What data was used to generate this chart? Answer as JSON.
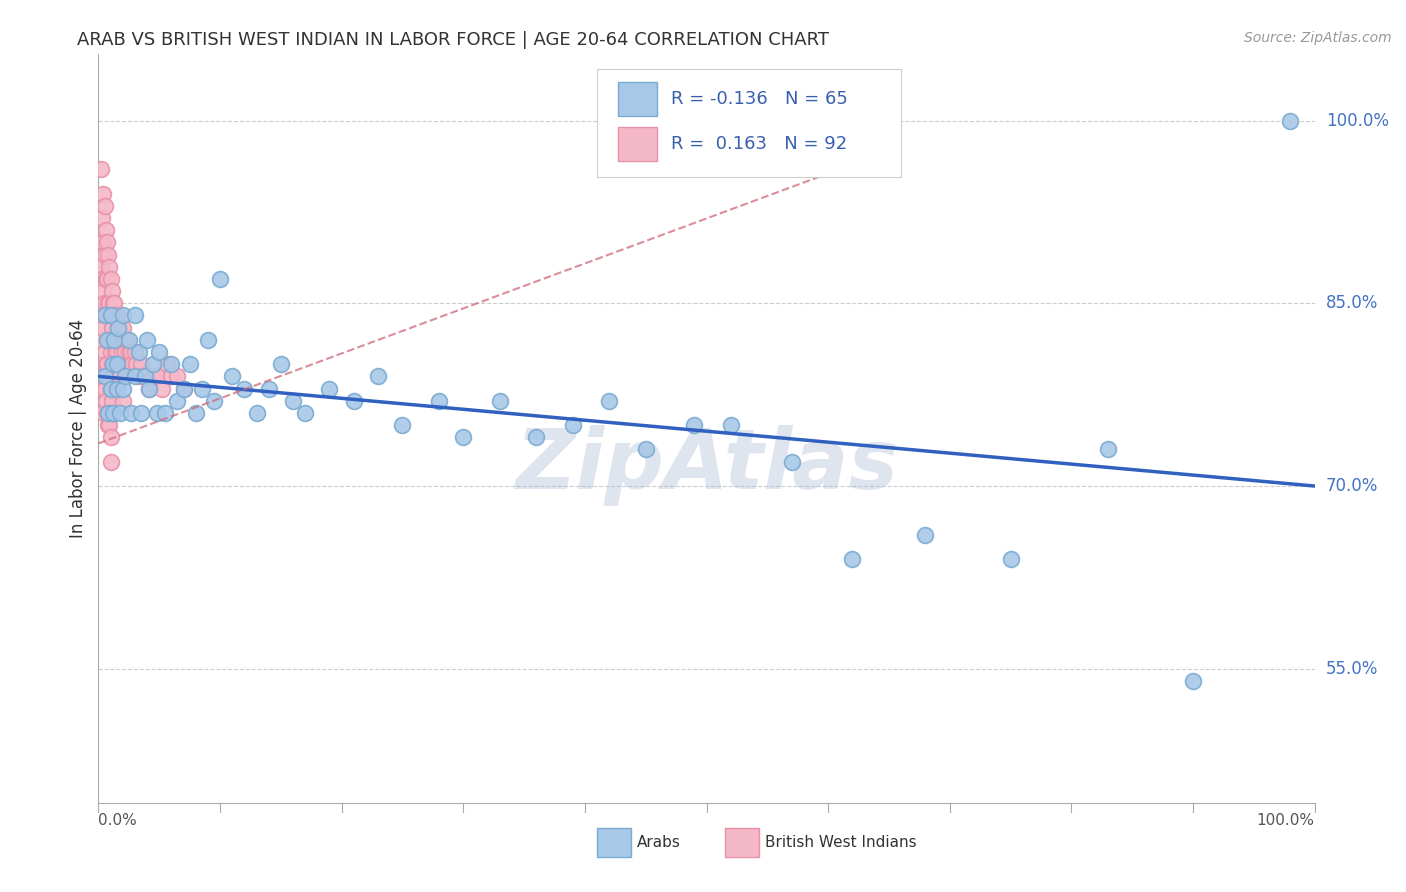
{
  "title": "ARAB VS BRITISH WEST INDIAN IN LABOR FORCE | AGE 20-64 CORRELATION CHART",
  "source": "Source: ZipAtlas.com",
  "ylabel": "In Labor Force | Age 20-64",
  "ytick_labels": [
    "55.0%",
    "70.0%",
    "85.0%",
    "100.0%"
  ],
  "ytick_values": [
    0.55,
    0.7,
    0.85,
    1.0
  ],
  "xlim": [
    0.0,
    1.0
  ],
  "ylim": [
    0.44,
    1.055
  ],
  "arab_fill": "#a8c8e8",
  "arab_edge": "#7aaad0",
  "bwi_fill": "#f5b8c8",
  "bwi_edge": "#e890a8",
  "trend_arab_color": "#3060c0",
  "trend_bwi_color": "#d06878",
  "R_arab": -0.136,
  "N_arab": 65,
  "R_bwi": 0.163,
  "N_bwi": 92,
  "watermark": "ZipAtlas",
  "legend_arab": "Arabs",
  "legend_bwi": "British West Indians",
  "trend_arab_y0": 0.79,
  "trend_arab_y1": 0.7,
  "trend_bwi_x0": 0.0,
  "trend_bwi_x1": 0.65,
  "trend_bwi_y0": 0.735,
  "trend_bwi_y1": 0.975,
  "arab_x": [
    0.005,
    0.005,
    0.007,
    0.008,
    0.01,
    0.01,
    0.012,
    0.012,
    0.013,
    0.015,
    0.015,
    0.016,
    0.018,
    0.02,
    0.02,
    0.022,
    0.025,
    0.027,
    0.03,
    0.03,
    0.033,
    0.035,
    0.038,
    0.04,
    0.042,
    0.045,
    0.048,
    0.05,
    0.055,
    0.06,
    0.065,
    0.07,
    0.075,
    0.08,
    0.085,
    0.09,
    0.095,
    0.1,
    0.11,
    0.12,
    0.13,
    0.14,
    0.15,
    0.16,
    0.17,
    0.19,
    0.21,
    0.23,
    0.25,
    0.28,
    0.3,
    0.33,
    0.36,
    0.39,
    0.42,
    0.45,
    0.49,
    0.52,
    0.57,
    0.62,
    0.68,
    0.75,
    0.83,
    0.9,
    0.98
  ],
  "arab_y": [
    0.84,
    0.79,
    0.82,
    0.76,
    0.84,
    0.78,
    0.8,
    0.76,
    0.82,
    0.78,
    0.8,
    0.83,
    0.76,
    0.84,
    0.78,
    0.79,
    0.82,
    0.76,
    0.84,
    0.79,
    0.81,
    0.76,
    0.79,
    0.82,
    0.78,
    0.8,
    0.76,
    0.81,
    0.76,
    0.8,
    0.77,
    0.78,
    0.8,
    0.76,
    0.78,
    0.82,
    0.77,
    0.87,
    0.79,
    0.78,
    0.76,
    0.78,
    0.8,
    0.77,
    0.76,
    0.78,
    0.77,
    0.79,
    0.75,
    0.77,
    0.74,
    0.77,
    0.74,
    0.75,
    0.77,
    0.73,
    0.75,
    0.75,
    0.72,
    0.64,
    0.66,
    0.64,
    0.73,
    0.54,
    1.0
  ],
  "bwi_x": [
    0.002,
    0.002,
    0.003,
    0.003,
    0.003,
    0.003,
    0.003,
    0.004,
    0.004,
    0.004,
    0.004,
    0.004,
    0.004,
    0.005,
    0.005,
    0.005,
    0.005,
    0.005,
    0.006,
    0.006,
    0.006,
    0.006,
    0.006,
    0.007,
    0.007,
    0.007,
    0.007,
    0.007,
    0.008,
    0.008,
    0.008,
    0.008,
    0.008,
    0.009,
    0.009,
    0.009,
    0.009,
    0.009,
    0.01,
    0.01,
    0.01,
    0.01,
    0.01,
    0.01,
    0.011,
    0.011,
    0.011,
    0.011,
    0.012,
    0.012,
    0.012,
    0.012,
    0.013,
    0.013,
    0.013,
    0.014,
    0.014,
    0.015,
    0.015,
    0.015,
    0.016,
    0.016,
    0.017,
    0.017,
    0.018,
    0.018,
    0.019,
    0.02,
    0.02,
    0.02,
    0.021,
    0.022,
    0.023,
    0.024,
    0.025,
    0.026,
    0.027,
    0.028,
    0.03,
    0.031,
    0.033,
    0.035,
    0.037,
    0.04,
    0.042,
    0.045,
    0.048,
    0.052,
    0.056,
    0.06,
    0.065,
    0.07
  ],
  "bwi_y": [
    0.96,
    0.88,
    0.92,
    0.87,
    0.84,
    0.82,
    0.78,
    0.94,
    0.9,
    0.86,
    0.83,
    0.79,
    0.76,
    0.93,
    0.89,
    0.85,
    0.81,
    0.78,
    0.91,
    0.87,
    0.84,
    0.8,
    0.77,
    0.9,
    0.87,
    0.84,
    0.8,
    0.76,
    0.89,
    0.85,
    0.82,
    0.79,
    0.75,
    0.88,
    0.85,
    0.82,
    0.79,
    0.75,
    0.87,
    0.84,
    0.81,
    0.78,
    0.74,
    0.72,
    0.86,
    0.83,
    0.8,
    0.77,
    0.85,
    0.82,
    0.79,
    0.76,
    0.85,
    0.82,
    0.79,
    0.84,
    0.81,
    0.84,
    0.81,
    0.78,
    0.83,
    0.8,
    0.82,
    0.79,
    0.82,
    0.79,
    0.81,
    0.83,
    0.8,
    0.77,
    0.82,
    0.81,
    0.82,
    0.8,
    0.81,
    0.8,
    0.81,
    0.8,
    0.81,
    0.8,
    0.79,
    0.8,
    0.79,
    0.79,
    0.78,
    0.79,
    0.79,
    0.78,
    0.8,
    0.79,
    0.79,
    0.78
  ]
}
